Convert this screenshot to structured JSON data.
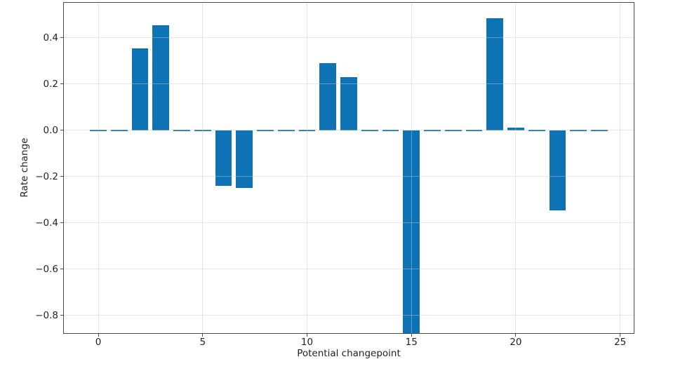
{
  "chart_data": {
    "type": "bar",
    "title": "",
    "xlabel": "Potential changepoint",
    "ylabel": "Rate change",
    "x": [
      0,
      1,
      2,
      3,
      4,
      5,
      6,
      7,
      8,
      9,
      10,
      11,
      12,
      13,
      14,
      15,
      16,
      17,
      18,
      19,
      20,
      21,
      22,
      23,
      24
    ],
    "values": [
      0,
      0,
      0.355,
      0.455,
      0,
      0,
      -0.24,
      -0.25,
      0,
      0,
      0,
      0.29,
      0.23,
      0,
      0,
      -0.88,
      0,
      0,
      0,
      0.485,
      0.012,
      0,
      -0.345,
      0,
      0
    ],
    "bar_width": 0.8,
    "xlim": [
      -1.65,
      25.65
    ],
    "ylim": [
      -0.876,
      0.5515
    ],
    "xticks": [
      0,
      5,
      10,
      15,
      20,
      25
    ],
    "xtick_labels": [
      "0",
      "5",
      "10",
      "15",
      "20",
      "25"
    ],
    "yticks": [
      0.4,
      0.2,
      0.0,
      -0.2,
      -0.4,
      -0.6,
      -0.8
    ],
    "ytick_labels": [
      "0.4",
      "0.2",
      "0.0",
      "−0.2",
      "−0.4",
      "−0.6",
      "−0.8"
    ],
    "grid": true,
    "grid_above_bars": true,
    "legend": null,
    "note": "Bar at x=15 extends below the visible y-range and is clipped at the plot bottom; near-zero bars render as short blue dashes along y=0",
    "colors": {
      "bar": "#0d73b5",
      "grid": "#e6e6e6",
      "spine": "#4a4a4a",
      "text": "#1f1f1f",
      "background": "#ffffff"
    }
  }
}
